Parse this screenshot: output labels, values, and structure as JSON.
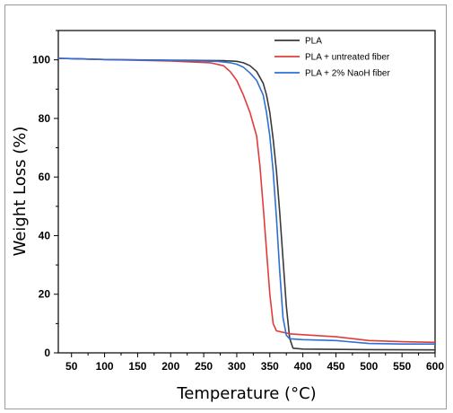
{
  "chart_data": {
    "type": "line",
    "xlabel": "Temperature (°C)",
    "ylabel": "Weight Loss (%)",
    "xlim": [
      30,
      600
    ],
    "ylim": [
      0,
      110
    ],
    "x_ticks": [
      50,
      100,
      150,
      200,
      250,
      300,
      350,
      400,
      450,
      500,
      550,
      600
    ],
    "y_ticks": [
      0,
      20,
      40,
      60,
      80,
      100
    ],
    "grid": false,
    "legend_position": "top-right",
    "series": [
      {
        "name": "PLA",
        "color": "#3a3a3a",
        "points": [
          [
            30,
            100.5
          ],
          [
            50,
            100.4
          ],
          [
            100,
            100.1
          ],
          [
            200,
            99.9
          ],
          [
            280,
            99.7
          ],
          [
            300,
            99.5
          ],
          [
            310,
            99
          ],
          [
            320,
            98
          ],
          [
            330,
            96
          ],
          [
            340,
            92
          ],
          [
            345,
            88
          ],
          [
            350,
            82
          ],
          [
            355,
            73
          ],
          [
            360,
            62
          ],
          [
            365,
            48
          ],
          [
            370,
            32
          ],
          [
            375,
            16
          ],
          [
            380,
            5
          ],
          [
            385,
            1.6
          ],
          [
            400,
            1.3
          ],
          [
            500,
            1.1
          ],
          [
            600,
            1.0
          ]
        ]
      },
      {
        "name": "PLA + untreated fiber",
        "color": "#e23b3b",
        "points": [
          [
            30,
            100.5
          ],
          [
            50,
            100.4
          ],
          [
            100,
            100.1
          ],
          [
            200,
            99.6
          ],
          [
            260,
            99
          ],
          [
            280,
            98
          ],
          [
            290,
            96
          ],
          [
            300,
            93
          ],
          [
            310,
            88
          ],
          [
            320,
            82
          ],
          [
            330,
            74
          ],
          [
            335,
            64
          ],
          [
            340,
            50
          ],
          [
            345,
            35
          ],
          [
            350,
            20
          ],
          [
            355,
            10
          ],
          [
            360,
            7.5
          ],
          [
            380,
            6.5
          ],
          [
            400,
            6.2
          ],
          [
            450,
            5.5
          ],
          [
            500,
            4.2
          ],
          [
            550,
            3.8
          ],
          [
            600,
            3.6
          ]
        ]
      },
      {
        "name": "PLA + 2% NaoH fiber",
        "color": "#2f6fd6",
        "points": [
          [
            30,
            100.5
          ],
          [
            50,
            100.4
          ],
          [
            100,
            100.1
          ],
          [
            200,
            99.8
          ],
          [
            270,
            99.5
          ],
          [
            290,
            99
          ],
          [
            300,
            98.5
          ],
          [
            310,
            97.5
          ],
          [
            320,
            95.5
          ],
          [
            330,
            93
          ],
          [
            340,
            88
          ],
          [
            345,
            82
          ],
          [
            350,
            74
          ],
          [
            355,
            62
          ],
          [
            360,
            46
          ],
          [
            365,
            28
          ],
          [
            370,
            12
          ],
          [
            375,
            6
          ],
          [
            380,
            4.8
          ],
          [
            400,
            4.5
          ],
          [
            450,
            4.2
          ],
          [
            500,
            3.2
          ],
          [
            550,
            3.0
          ],
          [
            600,
            3.0
          ]
        ]
      }
    ]
  }
}
